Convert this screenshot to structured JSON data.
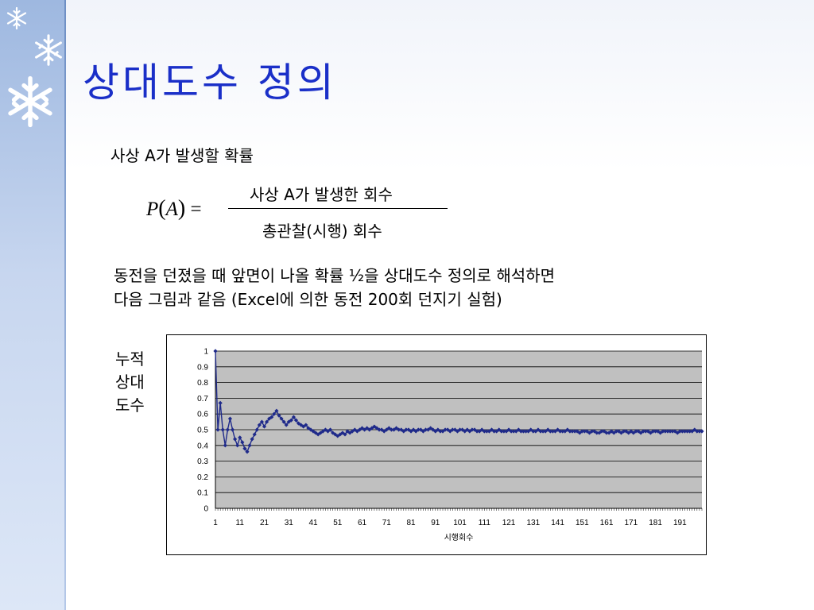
{
  "slide": {
    "title": "상대도수 정의",
    "definition_label": "사상 A가 발생할 확률",
    "formula": {
      "lhs_symbol": "P",
      "lhs_arg": "A",
      "equals": "=",
      "numerator": "사상 A가 발생한 회수",
      "denominator": "총관찰(시행) 회수"
    },
    "description_line1": "동전을 던졌을 때 앞면이 나올 확률 ½을 상대도수 정의로 해석하면",
    "description_line2": "다음 그림과 같음 (Excel에 의한 동전 200회 던지기 실험)",
    "chart_side_label": "누적\n상대\n도수"
  },
  "colors": {
    "title": "#1a2fc8",
    "series": "#1f2a8a",
    "plot_background": "#c0c0c0",
    "sidebar": "#b9cbea"
  },
  "icons": [
    "snowflake-icon",
    "snowflake-icon",
    "snowflake-icon"
  ],
  "chart_data": {
    "type": "line",
    "title": "",
    "xlabel": "시행회수",
    "ylabel": "",
    "xlim": [
      1,
      200
    ],
    "ylim": [
      0,
      1
    ],
    "grid": true,
    "legend": "none",
    "x_ticks": [
      "1",
      "11",
      "21",
      "31",
      "41",
      "51",
      "61",
      "71",
      "81",
      "91",
      "101",
      "111",
      "121",
      "131",
      "141",
      "151",
      "161",
      "171",
      "181",
      "191"
    ],
    "y_ticks": [
      "0",
      "0.1",
      "0.2",
      "0.3",
      "0.4",
      "0.5",
      "0.6",
      "0.7",
      "0.8",
      "0.9",
      "1"
    ],
    "series": [
      {
        "name": "",
        "marker": "diamond",
        "values": [
          1.0,
          0.5,
          0.67,
          0.5,
          0.4,
          0.5,
          0.57,
          0.5,
          0.44,
          0.4,
          0.45,
          0.42,
          0.38,
          0.36,
          0.4,
          0.44,
          0.47,
          0.5,
          0.53,
          0.55,
          0.52,
          0.55,
          0.57,
          0.58,
          0.6,
          0.62,
          0.59,
          0.57,
          0.55,
          0.53,
          0.55,
          0.56,
          0.58,
          0.56,
          0.54,
          0.53,
          0.52,
          0.53,
          0.51,
          0.5,
          0.49,
          0.48,
          0.47,
          0.48,
          0.49,
          0.5,
          0.49,
          0.5,
          0.48,
          0.47,
          0.46,
          0.47,
          0.48,
          0.47,
          0.49,
          0.48,
          0.49,
          0.5,
          0.49,
          0.5,
          0.51,
          0.5,
          0.51,
          0.5,
          0.51,
          0.52,
          0.51,
          0.5,
          0.5,
          0.49,
          0.5,
          0.51,
          0.5,
          0.5,
          0.51,
          0.5,
          0.5,
          0.49,
          0.5,
          0.5,
          0.49,
          0.5,
          0.49,
          0.5,
          0.5,
          0.49,
          0.5,
          0.5,
          0.51,
          0.5,
          0.49,
          0.5,
          0.49,
          0.49,
          0.5,
          0.5,
          0.49,
          0.5,
          0.5,
          0.49,
          0.5,
          0.5,
          0.49,
          0.5,
          0.49,
          0.5,
          0.5,
          0.49,
          0.49,
          0.5,
          0.49,
          0.49,
          0.49,
          0.5,
          0.49,
          0.49,
          0.5,
          0.49,
          0.49,
          0.49,
          0.5,
          0.49,
          0.49,
          0.49,
          0.5,
          0.49,
          0.49,
          0.49,
          0.49,
          0.5,
          0.49,
          0.49,
          0.5,
          0.49,
          0.49,
          0.49,
          0.5,
          0.49,
          0.49,
          0.49,
          0.5,
          0.49,
          0.49,
          0.49,
          0.5,
          0.49,
          0.49,
          0.49,
          0.49,
          0.48,
          0.49,
          0.49,
          0.49,
          0.48,
          0.49,
          0.49,
          0.48,
          0.48,
          0.49,
          0.49,
          0.48,
          0.48,
          0.49,
          0.48,
          0.49,
          0.49,
          0.48,
          0.49,
          0.49,
          0.48,
          0.49,
          0.48,
          0.49,
          0.49,
          0.48,
          0.49,
          0.49,
          0.49,
          0.48,
          0.49,
          0.49,
          0.49,
          0.48,
          0.49,
          0.49,
          0.49,
          0.49,
          0.49,
          0.49,
          0.48,
          0.49,
          0.49,
          0.49,
          0.49,
          0.49,
          0.49,
          0.5,
          0.49,
          0.49,
          0.49
        ]
      }
    ]
  }
}
